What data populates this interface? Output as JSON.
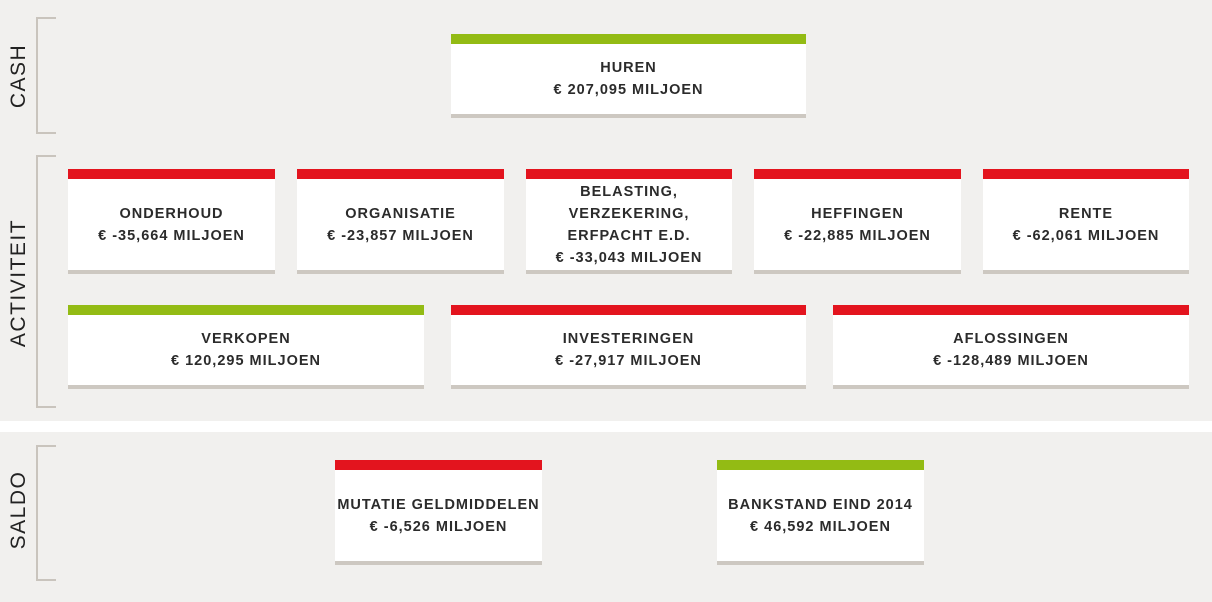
{
  "sections": {
    "cash": "CASH",
    "activiteit": "ACTIVITEIT",
    "saldo": "SALDO"
  },
  "colors": {
    "positive": "#93bb14",
    "negative": "#e3141e",
    "background": "#f1f0ee"
  },
  "cards": {
    "huren": {
      "title": "HUREN",
      "amount": "€ 207,095 MILJOEN",
      "sign": "positive"
    },
    "onderhoud": {
      "title": "ONDERHOUD",
      "amount": "€ -35,664 MILJOEN",
      "sign": "negative"
    },
    "organisatie": {
      "title": "ORGANISATIE",
      "amount": "€ -23,857 MILJOEN",
      "sign": "negative"
    },
    "belasting": {
      "title_line1": "BELASTING, VERZEKERING,",
      "title_line2": "ERFPACHT E.D.",
      "amount": "€ -33,043 MILJOEN",
      "sign": "negative"
    },
    "heffingen": {
      "title": "HEFFINGEN",
      "amount": "€ -22,885 MILJOEN",
      "sign": "negative"
    },
    "rente": {
      "title": "RENTE",
      "amount": "€ -62,061 MILJOEN",
      "sign": "negative"
    },
    "verkopen": {
      "title": "VERKOPEN",
      "amount": "€ 120,295 MILJOEN",
      "sign": "positive"
    },
    "investeringen": {
      "title": "INVESTERINGEN",
      "amount": "€ -27,917 MILJOEN",
      "sign": "negative"
    },
    "aflossingen": {
      "title": "AFLOSSINGEN",
      "amount": "€ -128,489 MILJOEN",
      "sign": "negative"
    },
    "mutatie": {
      "title": "MUTATIE GELDMIDDELEN",
      "amount": "€ -6,526 MILJOEN",
      "sign": "negative"
    },
    "bankstand": {
      "title": "BANKSTAND EIND 2014",
      "amount": "€ 46,592 MILJOEN",
      "sign": "positive"
    }
  }
}
